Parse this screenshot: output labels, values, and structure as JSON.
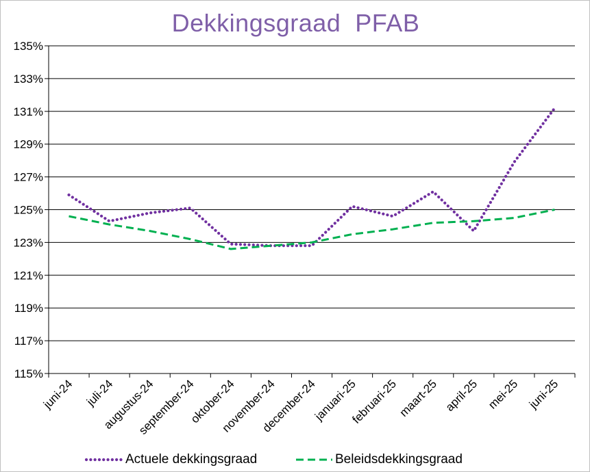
{
  "chart_data": {
    "type": "line",
    "title": "Dekkingsgraad  PFAB",
    "xlabel": "",
    "ylabel": "",
    "categories": [
      "juni-24",
      "juli-24",
      "augustus-24",
      "september-24",
      "oktober-24",
      "november-24",
      "december-24",
      "januari-25",
      "februari-25",
      "maart-25",
      "april-25",
      "mei-25",
      "juni-25"
    ],
    "ylim": [
      1.15,
      1.35
    ],
    "yticks": [
      1.15,
      1.17,
      1.19,
      1.21,
      1.23,
      1.25,
      1.27,
      1.29,
      1.31,
      1.33,
      1.35
    ],
    "ytick_labels": [
      "115%",
      "117%",
      "119%",
      "121%",
      "123%",
      "125%",
      "127%",
      "129%",
      "131%",
      "133%",
      "135%"
    ],
    "grid": true,
    "legend_position": "bottom",
    "series": [
      {
        "name": "Actuele dekkingsgraad",
        "style": "dotted",
        "color": "#7030a0",
        "values": [
          1.259,
          1.243,
          1.248,
          1.251,
          1.229,
          1.228,
          1.228,
          1.252,
          1.246,
          1.261,
          1.237,
          1.279,
          1.312
        ]
      },
      {
        "name": "Beleidsdekkingsgraad",
        "style": "dashed",
        "color": "#00b050",
        "values": [
          1.246,
          1.241,
          1.237,
          1.232,
          1.226,
          1.228,
          1.23,
          1.235,
          1.238,
          1.242,
          1.243,
          1.245,
          1.25
        ]
      }
    ]
  }
}
